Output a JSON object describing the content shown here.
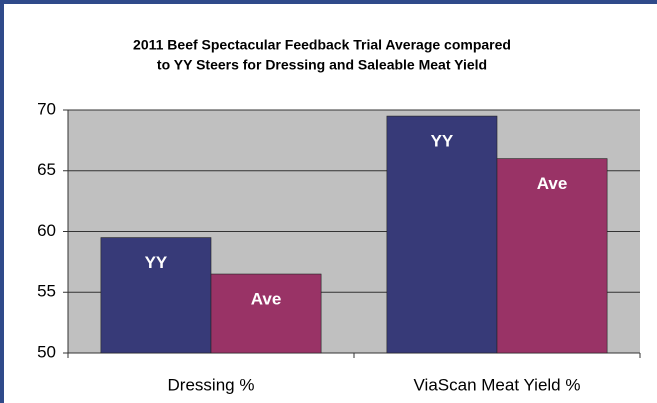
{
  "chart_data": {
    "type": "bar",
    "title": [
      "2011 Beef Spectacular Feedback Trial Average compared",
      "to YY Steers for Dressing and Saleable Meat Yield"
    ],
    "categories": [
      "Dressing %",
      "ViaScan Meat Yield %"
    ],
    "series": [
      {
        "name": "YY",
        "color": "#373a78",
        "values": [
          59.5,
          69.5
        ]
      },
      {
        "name": "Ave",
        "color": "#993366",
        "values": [
          56.5,
          66
        ]
      }
    ],
    "ylim": [
      50,
      70
    ],
    "yticks": [
      50,
      55,
      60,
      65,
      70
    ],
    "grid": true
  }
}
